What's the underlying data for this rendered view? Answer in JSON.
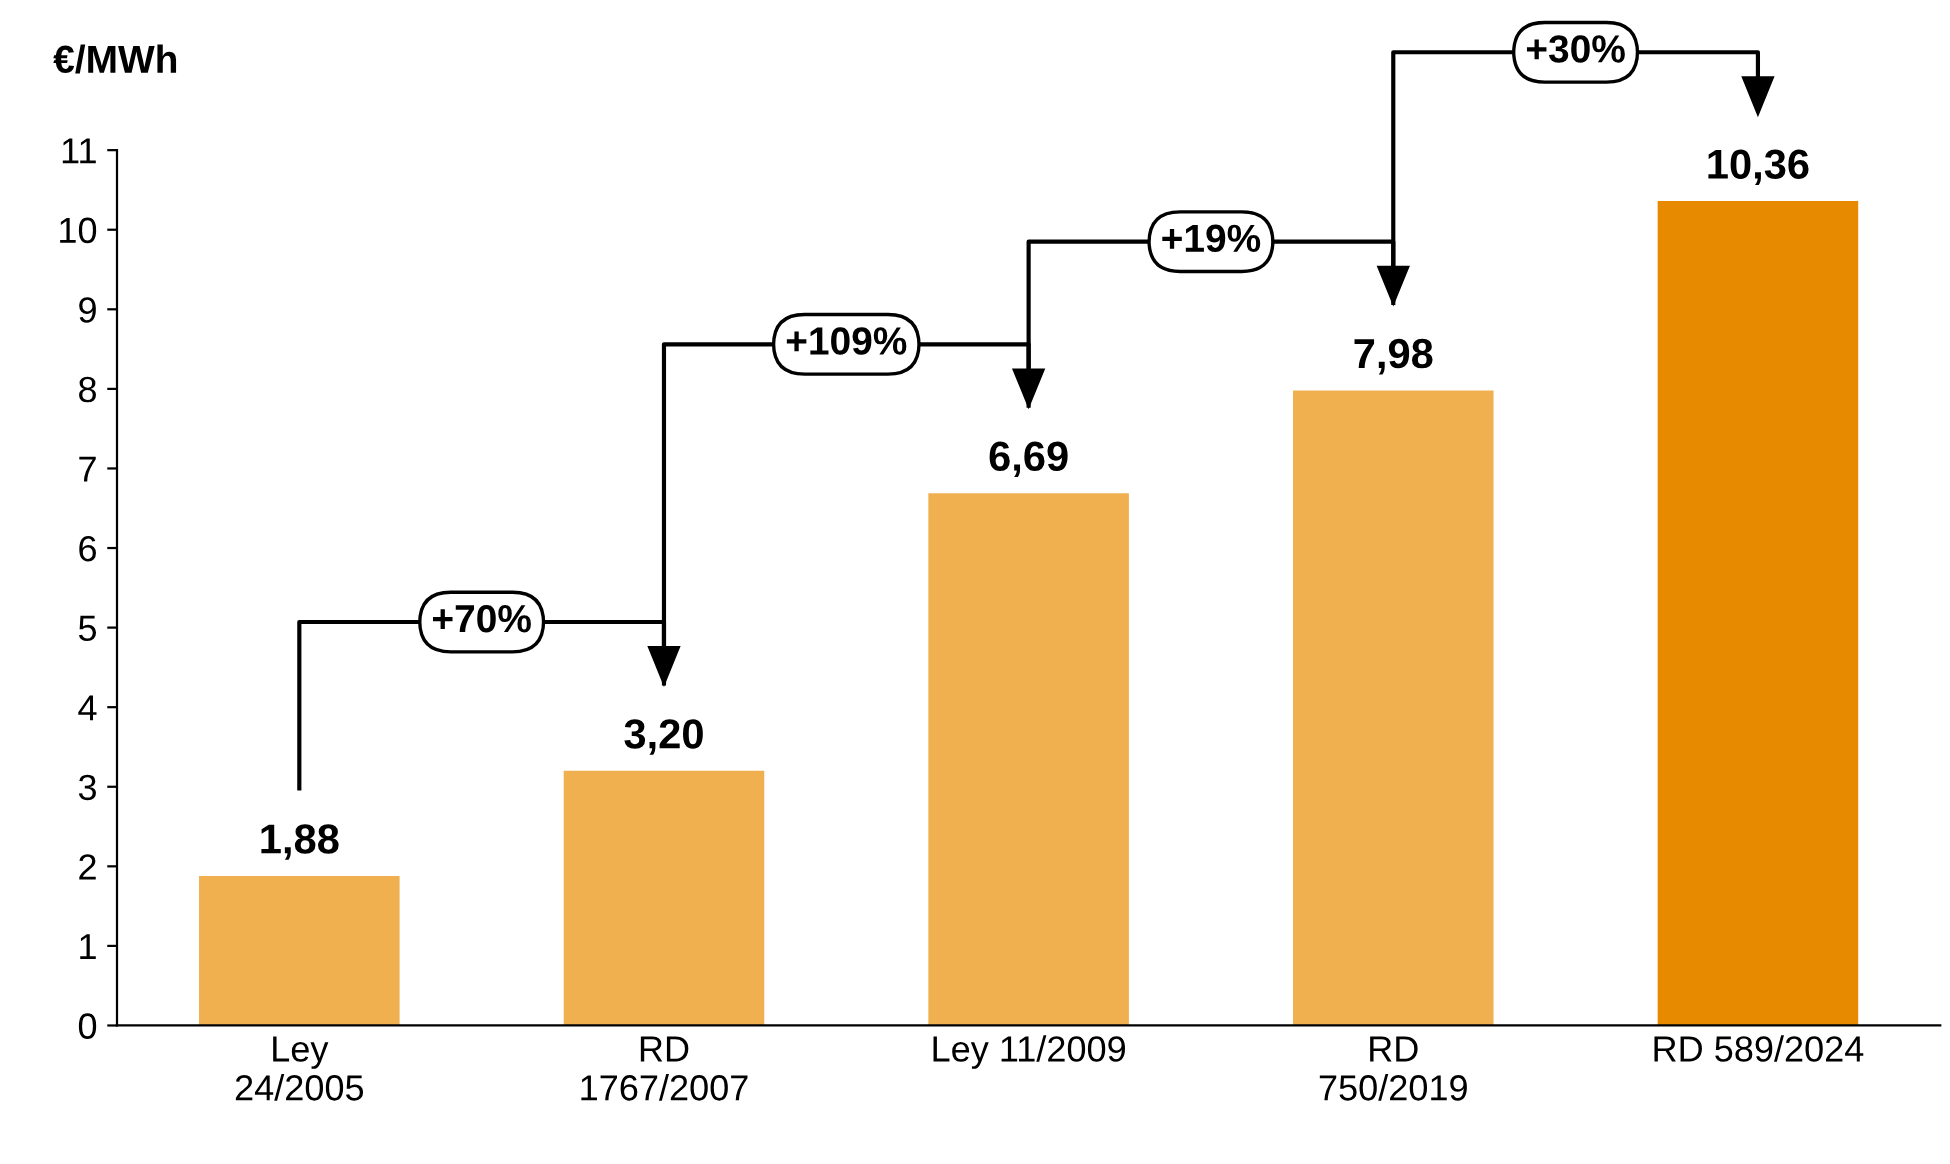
{
  "chart_data": {
    "type": "bar",
    "ylabel": "€/MWh",
    "categories": [
      "Ley\n24/2005",
      "RD\n1767/2007",
      "Ley 11/2009",
      "RD\n750/2019",
      "RD 589/2024"
    ],
    "values": [
      1.88,
      3.2,
      6.69,
      7.98,
      10.36
    ],
    "colors": [
      "#f0b050",
      "#f0b050",
      "#f0b050",
      "#f0b050",
      "#e88a00"
    ],
    "value_labels": [
      "1,88",
      "3,20",
      "6,69",
      "7,98",
      "10,36"
    ],
    "annotations": [
      "+70%",
      "+109%",
      "+19%",
      "+30%"
    ],
    "ylim": [
      0,
      11
    ],
    "yticks": [
      0,
      1,
      2,
      3,
      4,
      5,
      6,
      7,
      8,
      9,
      10,
      11
    ],
    "grid": false,
    "legend": false
  }
}
